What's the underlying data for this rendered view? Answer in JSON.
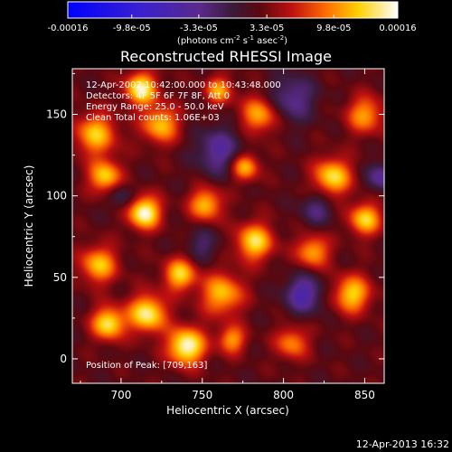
{
  "chart_data": {
    "type": "heatmap",
    "title": "Reconstructed RHESSI Image",
    "xlabel": "Heliocentric X (arcsec)",
    "ylabel": "Heliocentric Y (arcsec)",
    "xlim": [
      670,
      862
    ],
    "ylim": [
      -15,
      178
    ],
    "x_ticks": [
      "700",
      "750",
      "800",
      "850"
    ],
    "x_tick_values": [
      700,
      750,
      800,
      850
    ],
    "y_ticks": [
      "0",
      "50",
      "100",
      "150"
    ],
    "y_tick_values": [
      0,
      50,
      100,
      150
    ],
    "colorbar": {
      "ticks": [
        "-0.00016",
        "-9.8e-05",
        "-3.3e-05",
        "3.3e-05",
        "9.8e-05",
        "0.00016"
      ],
      "tick_values": [
        -0.00016,
        -9.8e-05,
        -3.3e-05,
        3.3e-05,
        9.8e-05,
        0.00016
      ],
      "range": [
        -0.00016,
        0.00016
      ],
      "unit_prefix": "(photons cm",
      "unit_sup1": "-2",
      "unit_mid": " s",
      "unit_sup2": "-1",
      "unit_mid2": " asec",
      "unit_sup3": "-2",
      "unit_suffix": ")"
    },
    "annotations": {
      "time": "12-Apr-2002 10:42:00.000 to 10:43:48.000",
      "detectors": "Detectors: 4F 5F 6F 7F 8F, Att 0",
      "energy": "Energy Range: 25.0 - 50.0 keV",
      "method": "Clean      Total counts: 1.06E+03",
      "peak": "Position of Peak: [709,163]"
    },
    "peak_position": [
      709,
      163
    ],
    "blobs": [
      {
        "x": 714,
        "y": 90,
        "sigma": 7,
        "amp": 1.0
      },
      {
        "x": 724,
        "y": 144,
        "sigma": 8,
        "amp": 0.7
      },
      {
        "x": 712,
        "y": 166,
        "sigma": 7,
        "amp": 0.9
      },
      {
        "x": 684,
        "y": 138,
        "sigma": 9,
        "amp": 0.7
      },
      {
        "x": 690,
        "y": 112,
        "sigma": 7,
        "amp": 0.75
      },
      {
        "x": 686,
        "y": 58,
        "sigma": 8,
        "amp": 0.7
      },
      {
        "x": 716,
        "y": 28,
        "sigma": 8,
        "amp": 0.9
      },
      {
        "x": 692,
        "y": 22,
        "sigma": 7,
        "amp": 0.85
      },
      {
        "x": 740,
        "y": 8,
        "sigma": 8,
        "amp": 1.0
      },
      {
        "x": 736,
        "y": 52,
        "sigma": 7,
        "amp": 0.75
      },
      {
        "x": 762,
        "y": 40,
        "sigma": 9,
        "amp": 0.7
      },
      {
        "x": 752,
        "y": 95,
        "sigma": 7,
        "amp": 0.7
      },
      {
        "x": 782,
        "y": 72,
        "sigma": 8,
        "amp": 0.8
      },
      {
        "x": 776,
        "y": 118,
        "sigma": 6,
        "amp": 0.7
      },
      {
        "x": 830,
        "y": 112,
        "sigma": 8,
        "amp": 0.8
      },
      {
        "x": 850,
        "y": 86,
        "sigma": 7,
        "amp": 0.75
      },
      {
        "x": 818,
        "y": 66,
        "sigma": 7,
        "amp": 0.65
      },
      {
        "x": 842,
        "y": 40,
        "sigma": 8,
        "amp": 0.75
      },
      {
        "x": 850,
        "y": 150,
        "sigma": 8,
        "amp": 0.6
      },
      {
        "x": 785,
        "y": 150,
        "sigma": 8,
        "amp": 0.65
      },
      {
        "x": 760,
        "y": 165,
        "sigma": 6,
        "amp": 0.6
      },
      {
        "x": 805,
        "y": 10,
        "sigma": 7,
        "amp": 0.55
      },
      {
        "x": 768,
        "y": 12,
        "sigma": 6,
        "amp": 0.6
      },
      {
        "x": 760,
        "y": 128,
        "sigma": 10,
        "amp": -0.5
      },
      {
        "x": 805,
        "y": 160,
        "sigma": 10,
        "amp": -0.45
      },
      {
        "x": 812,
        "y": 40,
        "sigma": 8,
        "amp": -0.6
      },
      {
        "x": 860,
        "y": 112,
        "sigma": 6,
        "amp": -0.5
      },
      {
        "x": 820,
        "y": 92,
        "sigma": 7,
        "amp": -0.35
      },
      {
        "x": 700,
        "y": 100,
        "sigma": 6,
        "amp": -0.3
      },
      {
        "x": 750,
        "y": 70,
        "sigma": 7,
        "amp": -0.3
      }
    ]
  },
  "footer": {
    "timestamp": "12-Apr-2013 16:32"
  }
}
